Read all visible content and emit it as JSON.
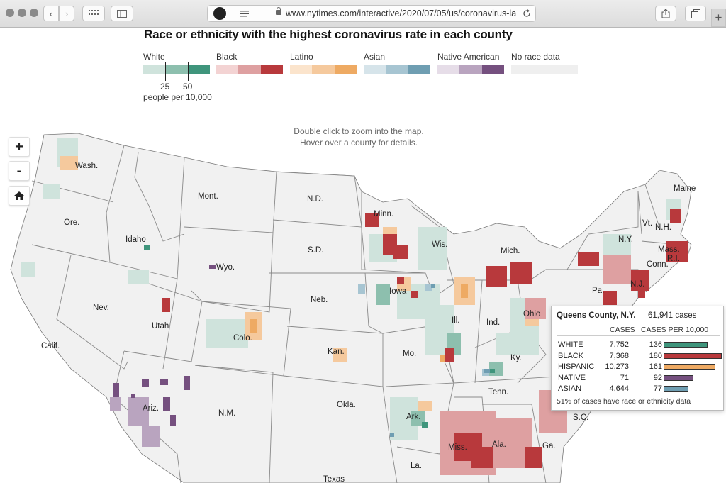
{
  "browser": {
    "url": "www.nytimes.com/interactive/2020/07/05/us/coronavirus-la"
  },
  "title": "Race or ethnicity with the highest coronavirus rate in each county",
  "legend": {
    "groups": [
      {
        "label": "White",
        "colors": [
          "#cfe3dc",
          "#8dbfae",
          "#3f957c"
        ]
      },
      {
        "label": "Black",
        "colors": [
          "#f3d3d3",
          "#dea0a1",
          "#b8393c"
        ]
      },
      {
        "label": "Latino",
        "colors": [
          "#fbe4cc",
          "#f5c99d",
          "#eeaa63"
        ]
      },
      {
        "label": "Asian",
        "colors": [
          "#d6e4ea",
          "#a7c5d2",
          "#6f9eb2"
        ]
      },
      {
        "label": "Native American",
        "colors": [
          "#e6dde8",
          "#b9a4bf",
          "#75507f"
        ]
      },
      {
        "label": "No race data",
        "colors": [
          "#efefef"
        ]
      }
    ],
    "ticks": [
      "25",
      "50"
    ],
    "unit": "people per 10,000"
  },
  "instructions": {
    "line1": "Double click to zoom into the map.",
    "line2": "Hover over a county for details."
  },
  "controls": {
    "zoom_in": "+",
    "zoom_out": "-"
  },
  "states": {
    "wash": "Wash.",
    "ore": "Ore.",
    "calif": "Calif.",
    "idaho": "Idaho",
    "nev": "Nev.",
    "mont": "Mont.",
    "wyo": "Wyo.",
    "utah": "Utah",
    "ariz": "Ariz.",
    "colo": "Colo.",
    "nm": "N.M.",
    "nd": "N.D.",
    "sd": "S.D.",
    "neb": "Neb.",
    "kan": "Kan.",
    "okla": "Okla.",
    "texas": "Texas",
    "minn": "Minn.",
    "iowa": "Iowa",
    "mo": "Mo.",
    "ark": "Ark.",
    "la": "La.",
    "wis": "Wis.",
    "ill": "Ill.",
    "mich": "Mich.",
    "ind": "Ind.",
    "ohio": "Ohio",
    "ky": "Ky.",
    "tenn": "Tenn.",
    "miss": "Miss.",
    "ala": "Ala.",
    "ga": "Ga.",
    "sc": "S.C.",
    "pa": "Pa.",
    "ny": "N.Y.",
    "vt": "Vt.",
    "nh": "N.H.",
    "maine": "Maine",
    "mass": "Mass.",
    "ri": "R.I.",
    "conn": "Conn.",
    "nj": "N.J."
  },
  "tooltip": {
    "county": "Queens County, N.Y.",
    "total": "61,941 cases",
    "col_cases": "CASES",
    "col_rate": "CASES PER 10,000",
    "rows": [
      {
        "group": "WHITE",
        "cases": "7,752",
        "rate": "136",
        "rate_value": 136,
        "color": "#3f957c"
      },
      {
        "group": "BLACK",
        "cases": "7,368",
        "rate": "180",
        "rate_value": 180,
        "color": "#b8393c"
      },
      {
        "group": "HISPANIC",
        "cases": "10,273",
        "rate": "161",
        "rate_value": 161,
        "color": "#eeaa63"
      },
      {
        "group": "NATIVE",
        "cases": "71",
        "rate": "92",
        "rate_value": 92,
        "color": "#75507f"
      },
      {
        "group": "ASIAN",
        "cases": "4,644",
        "rate": "77",
        "rate_value": 77,
        "color": "#6f9eb2"
      }
    ],
    "note": "51% of cases have race or ethnicity data"
  }
}
